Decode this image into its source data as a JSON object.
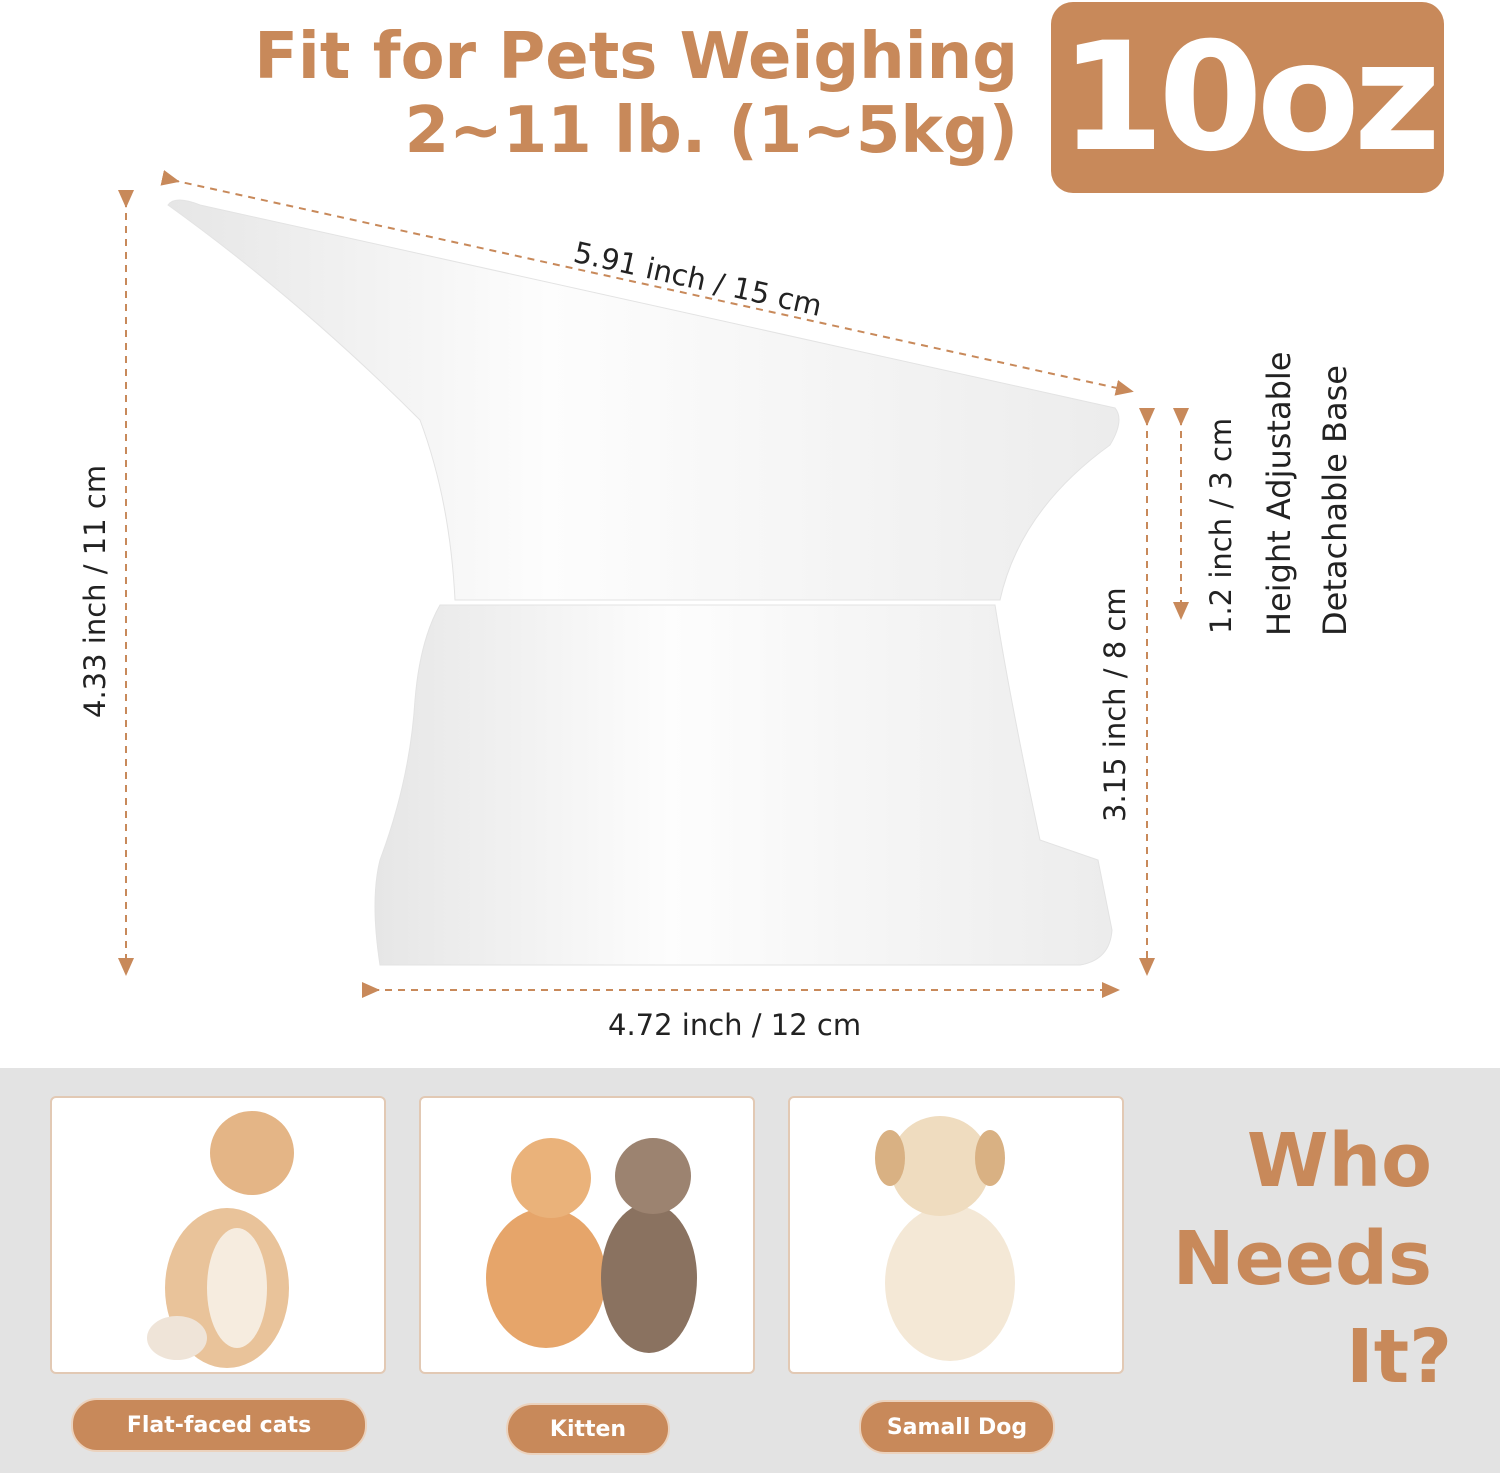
{
  "header": {
    "title_line1": "Fit for Pets Weighing",
    "title_line2": "2~11 lb. (1~5kg)",
    "capacity_badge": "10oz"
  },
  "dimensions": {
    "diagonal": "5.91 inch  /  15 cm",
    "total_height": "4.33 inch  /  11 cm",
    "base_height": "3.15 inch  /  8 cm",
    "adjust_height": "1.2 inch  /  3 cm",
    "base_width": "4.72 inch  /  12 cm",
    "feature_1": "Height Adjustable",
    "feature_2": "Detachable Base"
  },
  "who": {
    "line1": "Who",
    "line2": "Needs",
    "line3": "It?"
  },
  "pets": [
    {
      "label": "Flat-faced cats",
      "image": "flat-faced-cat-photo"
    },
    {
      "label": "Kitten",
      "image": "kittens-photo"
    },
    {
      "label": "Samall Dog",
      "image": "puppy-photo"
    }
  ],
  "colors": {
    "accent": "#C8895A",
    "bottom_bg": "#E3E3E3",
    "dash_line": "#C8895A"
  }
}
